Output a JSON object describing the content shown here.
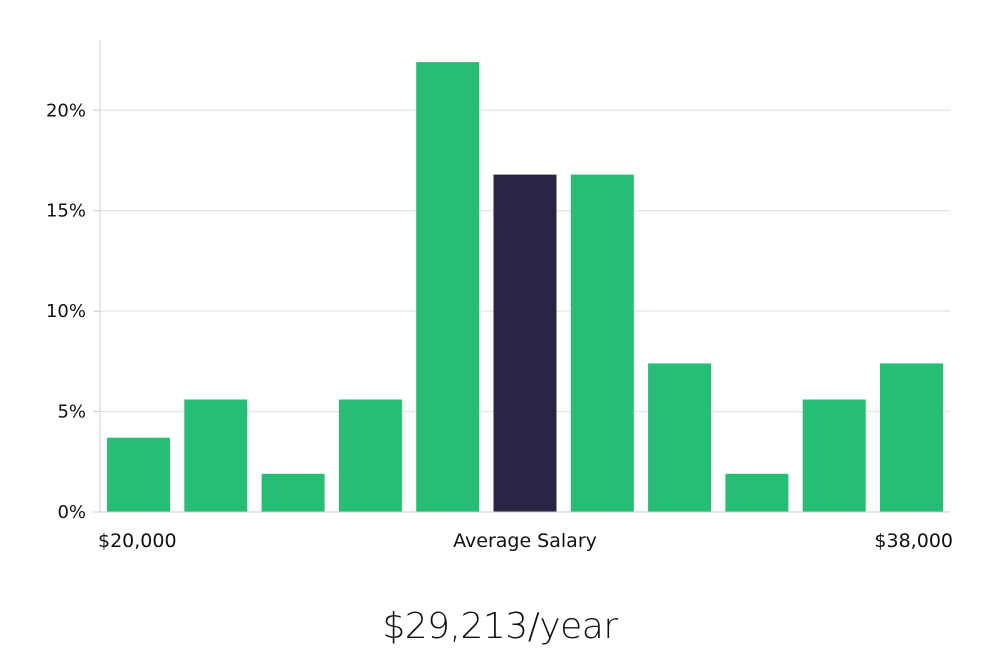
{
  "chart_data": {
    "type": "bar",
    "title": "",
    "xlabel": "Average Salary",
    "ylabel": "",
    "x_range_labels": [
      "$20,000",
      "$38,000"
    ],
    "values": [
      3.7,
      5.6,
      1.9,
      5.6,
      22.4,
      16.8,
      16.8,
      7.4,
      1.9,
      5.6,
      7.4
    ],
    "highlight_index": 5,
    "y_ticks": [
      0,
      5,
      10,
      15,
      20
    ],
    "y_tick_labels": [
      "0%",
      "5%",
      "10%",
      "15%",
      "20%"
    ],
    "ylim": [
      0,
      23.5
    ],
    "grid": true
  },
  "colors": {
    "bar": "#28bd74",
    "highlight": "#282545",
    "grid": "#dddddd",
    "axis": "#cccccc"
  },
  "salary_text": "$29,213/year"
}
